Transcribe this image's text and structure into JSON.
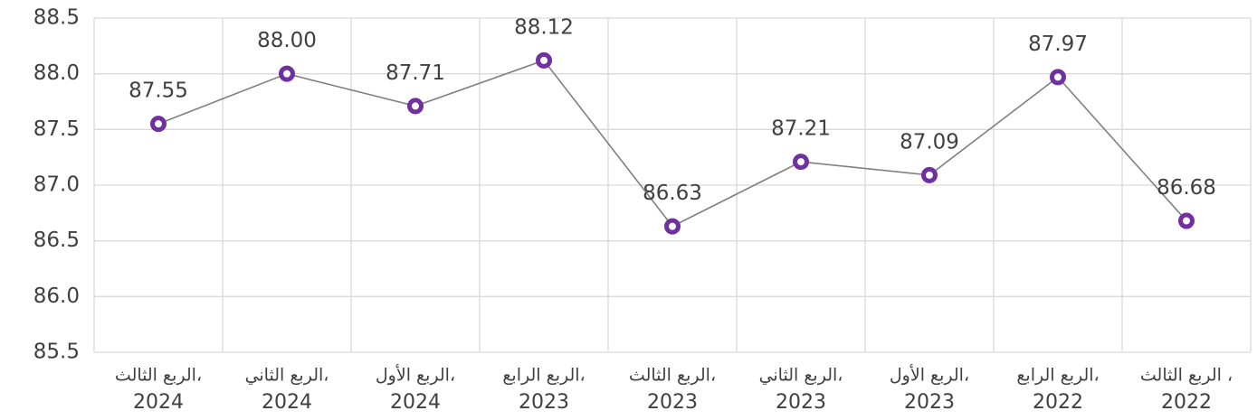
{
  "chart_data": {
    "type": "line",
    "categories": [
      [
        "الربع الثالث،",
        "2024"
      ],
      [
        "الربع الثاني،",
        "2024"
      ],
      [
        "الربع الأول،",
        "2024"
      ],
      [
        "الربع الرابع،",
        "2023"
      ],
      [
        "الربع الثالث،",
        "2023"
      ],
      [
        "الربع الثاني،",
        "2023"
      ],
      [
        "الربع الأول،",
        "2023"
      ],
      [
        "الربع الرابع،",
        "2022"
      ],
      [
        "الربع الثالث ،",
        "2022"
      ]
    ],
    "values": [
      87.55,
      88.0,
      87.71,
      88.12,
      86.63,
      87.21,
      87.09,
      87.97,
      86.68
    ],
    "value_labels": [
      "87.55",
      "88.00",
      "87.71",
      "88.12",
      "86.63",
      "87.21",
      "87.09",
      "87.97",
      "86.68"
    ],
    "color": "#7030a0",
    "line_color": "#808080",
    "ylim": [
      85.5,
      88.5
    ],
    "yticks": [
      85.5,
      {
        "value": 86,
        "label": "86.0"
      },
      86.5,
      {
        "value": 87,
        "label": "87.0"
      },
      87.5,
      {
        "value": 88,
        "label": "88.0"
      },
      88.5
    ],
    "grid": true
  }
}
